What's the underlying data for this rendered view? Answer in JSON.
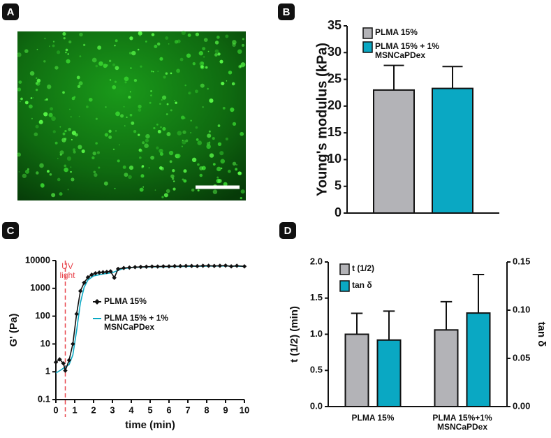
{
  "image_panel": {
    "label": "A"
  },
  "chart_data": [
    {
      "type": "bar",
      "label": "B",
      "y_label": "Young's modulus (kPa)",
      "ylim": [
        0,
        35
      ],
      "yticks": [
        0,
        5,
        10,
        15,
        20,
        25,
        30,
        35
      ],
      "series": [
        {
          "name": "PLMA 15%",
          "color": "#b3b3b7",
          "values": [
            23
          ],
          "errors": [
            4.6
          ]
        },
        {
          "name": "PLMA 15% + 1% MSNCaPDex",
          "color": "#0aa8c3",
          "values": [
            23.3
          ],
          "errors": [
            4.1
          ]
        }
      ]
    },
    {
      "type": "line",
      "label": "C",
      "x_label": "time (min)",
      "y_label": "G' (Pa)",
      "ylog": true,
      "xlim": [
        0,
        10
      ],
      "xticks": [
        0,
        1,
        2,
        3,
        4,
        5,
        6,
        7,
        8,
        9,
        10
      ],
      "ylim": [
        0.1,
        10000
      ],
      "yticks": [
        0.1,
        1,
        10,
        100,
        1000,
        10000
      ],
      "annotation": {
        "text": "UV light",
        "x": 0.5,
        "color": "#e8474f"
      },
      "series": [
        {
          "name": "PLMA 15%",
          "color": "#111111",
          "marker": "diamond",
          "x": [
            0,
            0.2,
            0.4,
            0.5,
            0.7,
            0.9,
            1.1,
            1.3,
            1.5,
            1.7,
            1.9,
            2.1,
            2.3,
            2.5,
            2.7,
            2.9,
            3.1,
            3.3,
            3.6,
            3.9,
            4.2,
            4.5,
            4.8,
            5.1,
            5.4,
            5.7,
            6,
            6.3,
            6.6,
            6.9,
            7.2,
            7.5,
            7.8,
            8.1,
            8.4,
            8.7,
            9,
            9.3,
            9.6,
            10
          ],
          "values": [
            2.2,
            2.8,
            2.0,
            1.1,
            2.6,
            10,
            120,
            800,
            1600,
            2500,
            3100,
            3500,
            3700,
            3800,
            3900,
            4100,
            2400,
            5000,
            5400,
            5600,
            5800,
            5900,
            6000,
            6100,
            6100,
            6200,
            6200,
            6300,
            6300,
            6400,
            6400,
            6300,
            6500,
            6500,
            6400,
            6500,
            6600,
            6200,
            6500,
            6200
          ]
        },
        {
          "name": "PLMA 15% + 1% MSNCaPDex",
          "color": "#0aa8c3",
          "x": [
            0,
            0.3,
            0.5,
            0.7,
            0.9,
            1.1,
            1.3,
            1.5,
            1.7,
            2,
            2.5,
            3,
            3.5,
            4,
            5,
            6,
            7,
            8,
            9,
            10
          ],
          "values": [
            0.9,
            1.2,
            1.5,
            1.8,
            4,
            30,
            300,
            1100,
            2000,
            2800,
            3300,
            3700,
            5000,
            5600,
            5900,
            6000,
            6200,
            6300,
            6400,
            6200
          ]
        }
      ]
    },
    {
      "type": "bar",
      "label": "D",
      "y_label": "t (1/2) (min)",
      "y2_label": "tan δ",
      "categories": [
        "PLMA 15%",
        "PLMA 15%+1% MSNCaPDex"
      ],
      "ylim": [
        0,
        2
      ],
      "yticks": [
        {
          "value": 0,
          "label": "0.0"
        },
        0.5,
        {
          "value": 1,
          "label": "1.0"
        },
        1.5,
        {
          "value": 2,
          "label": "2.0"
        }
      ],
      "y2lim": [
        0,
        0.15
      ],
      "y2ticks": [
        {
          "value": 0,
          "label": "0.00"
        },
        0.05,
        {
          "value": 0.1,
          "label": "0.10"
        },
        0.15
      ],
      "series": [
        {
          "name": "t (1/2)",
          "color": "#b3b3b7",
          "values": [
            1.0,
            1.06
          ],
          "errors": [
            0.29,
            0.39
          ]
        },
        {
          "name": "tan δ",
          "color": "#0aa8c3",
          "axis": "y2",
          "values": [
            0.069,
            0.097
          ],
          "errors": [
            0.03,
            0.04
          ]
        }
      ]
    }
  ]
}
